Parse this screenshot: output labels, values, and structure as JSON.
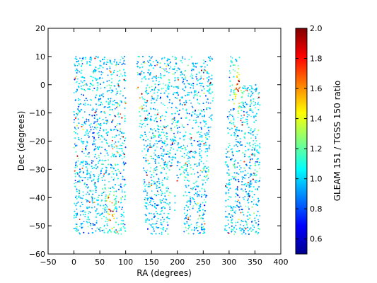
{
  "chart_data": {
    "type": "scatter",
    "title": "",
    "xlabel": "RA (degrees)",
    "ylabel": "Dec (degrees)",
    "colorbar_label": "GLEAM 151 / TGSS 150 ratio",
    "xlim": [
      -50,
      400
    ],
    "ylim": [
      -60,
      20
    ],
    "xticks": [
      "−50",
      "0",
      "50",
      "100",
      "150",
      "200",
      "250",
      "300",
      "350",
      "400"
    ],
    "yticks": [
      "−60",
      "−50",
      "−40",
      "−30",
      "−20",
      "−10",
      "0",
      "10",
      "20"
    ],
    "colorbar_range": [
      0.5,
      2.0
    ],
    "colorbar_ticks": [
      "0.6",
      "0.8",
      "1.0",
      "1.2",
      "1.4",
      "1.6",
      "1.8",
      "2.0"
    ],
    "colormap": "jet",
    "grid": false,
    "point_color_median": 1.0,
    "coverage_regions": [
      {
        "ra": [
          0,
          100
        ],
        "dec": [
          -53,
          10
        ]
      },
      {
        "ra": [
          120,
          195
        ],
        "dec": [
          -53,
          10
        ]
      },
      {
        "ra": [
          195,
          275
        ],
        "dec": [
          -53,
          10
        ]
      },
      {
        "ra": [
          290,
          360
        ],
        "dec": [
          -53,
          10
        ]
      }
    ],
    "notable_features": [
      {
        "label": "high ratio cluster",
        "ra": 72,
        "dec": -45,
        "ratio": 1.9
      },
      {
        "label": "high ratio stripe",
        "ra": 125,
        "dec": -5,
        "ratio": 1.7
      },
      {
        "label": "high ratio stripe",
        "ra": 318,
        "dec": -2,
        "ratio": 1.8
      },
      {
        "label": "low ratio region",
        "ra": 35,
        "dec": -20,
        "ratio": 0.75
      },
      {
        "label": "low ratio region",
        "ra": 320,
        "dec": -38,
        "ratio": 0.75
      }
    ]
  }
}
